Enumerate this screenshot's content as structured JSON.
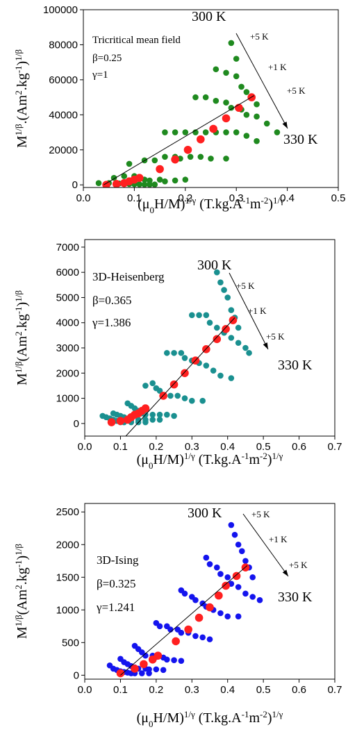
{
  "chart_data": [
    {
      "type": "scatter",
      "x_label": [
        "(μ",
        "0",
        "H/M)",
        "1/γ",
        " (T.kg.A",
        "-1",
        "m",
        "-2",
        ")",
        "1/γ"
      ],
      "y_label": [
        "M",
        "1/β",
        ".(Am",
        "2",
        ".kg",
        "-1",
        ")",
        "1/β"
      ],
      "annotations": [
        "Tricritical mean field",
        "β=0.25",
        "γ=1",
        "300 K",
        "+5 K",
        "+1 K",
        "+5 K",
        "330 K"
      ],
      "xlim": [
        0,
        0.5
      ],
      "xticks": [
        {
          "value": 0,
          "label": "0.0"
        },
        0.1,
        0.2,
        0.3,
        0.4,
        0.5
      ],
      "ylim": [
        -1500,
        100000
      ],
      "yticks": [
        0,
        20000,
        40000,
        60000,
        80000,
        100000
      ],
      "series": [
        {
          "color": "#1f8a1f",
          "x": [
            0.03,
            0.06,
            0.09,
            0.16,
            0.22,
            0.26,
            0.29,
            0.05,
            0.08,
            0.12,
            0.18,
            0.24,
            0.28,
            0.3,
            0.07,
            0.1,
            0.14,
            0.2,
            0.26,
            0.3,
            0.08,
            0.11,
            0.16,
            0.22,
            0.28,
            0.31,
            0.09,
            0.12,
            0.18,
            0.24,
            0.29,
            0.32,
            0.1,
            0.13,
            0.19,
            0.26,
            0.31,
            0.33,
            0.11,
            0.15,
            0.21,
            0.28,
            0.32,
            0.34,
            0.12,
            0.16,
            0.23,
            0.3,
            0.34,
            0.13,
            0.18,
            0.25,
            0.32,
            0.36,
            0.14,
            0.2,
            0.28,
            0.34,
            0.38
          ],
          "values": [
            1000,
            4000,
            12000,
            30000,
            50000,
            66000,
            81000,
            1000,
            5000,
            14000,
            30000,
            50000,
            64000,
            72000,
            800,
            5000,
            14000,
            30000,
            48000,
            62000,
            600,
            4000,
            16000,
            30000,
            47000,
            56000,
            500,
            3000,
            16000,
            30000,
            44000,
            53000,
            400,
            2500,
            15000,
            30000,
            43000,
            50000,
            300,
            3000,
            16000,
            30000,
            40000,
            46000,
            200,
            2000,
            16000,
            30000,
            39000,
            200,
            2500,
            15000,
            28000,
            35000,
            200,
            3000,
            15000,
            25000,
            30000
          ]
        },
        {
          "color": "#ff2020",
          "x": [
            0.045,
            0.065,
            0.08,
            0.09,
            0.1,
            0.11,
            0.15,
            0.18,
            0.205,
            0.23,
            0.255,
            0.28,
            0.305,
            0.33
          ],
          "values": [
            0,
            500,
            1000,
            2000,
            3000,
            4000,
            9000,
            14500,
            20000,
            26000,
            32000,
            38000,
            44000,
            50000
          ]
        },
        {
          "color": "#000000",
          "style": "line",
          "x": [
            0.04,
            0.335
          ],
          "values": [
            0,
            51000
          ]
        }
      ]
    },
    {
      "type": "scatter",
      "x_label": [
        "(μ",
        "0",
        "H/M)",
        "1/γ",
        " (T.kg.A",
        "-1",
        "m",
        "-2",
        ")",
        "1/γ"
      ],
      "y_label": [
        "M",
        "1/β",
        "(Am",
        "2",
        ".kg",
        "-1",
        ")",
        "1/β"
      ],
      "annotations": [
        "3D-Heisenberg",
        "β=0.365",
        "γ=1.386",
        "300 K",
        "+5 K",
        "+1 K",
        "+5 K",
        "330 K"
      ],
      "xlim": [
        0,
        0.7
      ],
      "xticks": [
        {
          "value": 0,
          "label": "0.0"
        },
        0.1,
        0.2,
        0.3,
        0.4,
        0.5,
        0.6,
        0.7
      ],
      "ylim": [
        -500,
        7300
      ],
      "yticks": [
        0,
        1000,
        2000,
        3000,
        4000,
        5000,
        6000,
        7000
      ],
      "series": [
        {
          "color": "#1a9090",
          "x": [
            0.05,
            0.08,
            0.12,
            0.17,
            0.23,
            0.3,
            0.37,
            0.06,
            0.09,
            0.13,
            0.19,
            0.25,
            0.32,
            0.38,
            0.07,
            0.1,
            0.14,
            0.2,
            0.27,
            0.34,
            0.39,
            0.08,
            0.11,
            0.15,
            0.21,
            0.28,
            0.35,
            0.4,
            0.09,
            0.12,
            0.16,
            0.22,
            0.3,
            0.37,
            0.41,
            0.1,
            0.13,
            0.17,
            0.24,
            0.32,
            0.39,
            0.42,
            0.11,
            0.15,
            0.19,
            0.26,
            0.34,
            0.41,
            0.43,
            0.13,
            0.17,
            0.21,
            0.28,
            0.36,
            0.43,
            0.15,
            0.19,
            0.23,
            0.3,
            0.38,
            0.45,
            0.17,
            0.21,
            0.25,
            0.33,
            0.41,
            0.46
          ],
          "values": [
            300,
            400,
            800,
            1500,
            2800,
            4300,
            6000,
            250,
            350,
            700,
            1600,
            2800,
            4300,
            5600,
            200,
            300,
            600,
            1400,
            2800,
            4300,
            5300,
            150,
            250,
            500,
            1300,
            2600,
            4000,
            5000,
            100,
            200,
            400,
            1100,
            2500,
            3800,
            4500,
            50,
            150,
            350,
            1100,
            2400,
            3600,
            4200,
            50,
            150,
            350,
            1100,
            2300,
            3400,
            3800,
            50,
            150,
            350,
            1000,
            2100,
            3200,
            50,
            150,
            350,
            900,
            1900,
            3000,
            50,
            150,
            300,
            900,
            1800,
            2800
          ]
        },
        {
          "color": "#ff2020",
          "x": [
            0.075,
            0.1,
            0.12,
            0.13,
            0.14,
            0.15,
            0.16,
            0.17,
            0.22,
            0.25,
            0.28,
            0.31,
            0.34,
            0.37,
            0.395,
            0.415
          ],
          "values": [
            50,
            100,
            150,
            250,
            350,
            400,
            500,
            600,
            1100,
            1550,
            2000,
            2500,
            2950,
            3350,
            3750,
            4100
          ]
        },
        {
          "color": "#000000",
          "style": "line",
          "x": [
            0.115,
            0.42
          ],
          "values": [
            -500,
            4200
          ]
        }
      ]
    },
    {
      "type": "scatter",
      "x_label": [
        "(μ",
        "0",
        "H/M)",
        "1/γ",
        " (T.kg.A",
        "-1",
        "m",
        "-2",
        ")",
        "1/γ"
      ],
      "y_label": [
        "M",
        "1/β",
        "(Am",
        "2",
        ".kg",
        "-1",
        ")",
        "1/β"
      ],
      "annotations": [
        "3D-Ising",
        "β=0.325",
        "γ=1.241",
        "300 K",
        "+5 K",
        "+1 K",
        "+5 K",
        "330 K"
      ],
      "xlim": [
        0,
        0.7
      ],
      "xticks": [
        {
          "value": 0,
          "label": "0.0"
        },
        0.1,
        0.2,
        0.3,
        0.4,
        0.5,
        0.6,
        0.7
      ],
      "ylim": [
        -60,
        2630
      ],
      "yticks": [
        0,
        500,
        1000,
        1500,
        2000,
        2500
      ],
      "series": [
        {
          "color": "#1414ee",
          "x": [
            0.07,
            0.1,
            0.14,
            0.2,
            0.27,
            0.34,
            0.41,
            0.08,
            0.11,
            0.15,
            0.21,
            0.28,
            0.35,
            0.42,
            0.09,
            0.12,
            0.16,
            0.23,
            0.3,
            0.37,
            0.43,
            0.1,
            0.13,
            0.17,
            0.24,
            0.31,
            0.38,
            0.44,
            0.11,
            0.14,
            0.19,
            0.26,
            0.33,
            0.4,
            0.45,
            0.12,
            0.15,
            0.2,
            0.27,
            0.34,
            0.41,
            0.46,
            0.13,
            0.17,
            0.22,
            0.29,
            0.36,
            0.43,
            0.47,
            0.14,
            0.18,
            0.23,
            0.31,
            0.38,
            0.45,
            0.16,
            0.2,
            0.25,
            0.33,
            0.4,
            0.47,
            0.18,
            0.22,
            0.27,
            0.35,
            0.43,
            0.49
          ],
          "values": [
            150,
            250,
            450,
            800,
            1300,
            1800,
            2300,
            100,
            200,
            400,
            750,
            1250,
            1700,
            2150,
            80,
            170,
            350,
            750,
            1200,
            1650,
            2000,
            60,
            140,
            300,
            700,
            1150,
            1550,
            1900,
            50,
            120,
            300,
            700,
            1100,
            1500,
            1750,
            40,
            100,
            280,
            650,
            1050,
            1400,
            1650,
            30,
            100,
            270,
            650,
            1000,
            1350,
            1500,
            30,
            90,
            240,
            600,
            950,
            1250,
            30,
            90,
            230,
            580,
            900,
            1200,
            30,
            80,
            220,
            550,
            900,
            1150
          ]
        },
        {
          "color": "#ff2020",
          "x": [
            0.1,
            0.14,
            0.165,
            0.19,
            0.205,
            0.255,
            0.29,
            0.32,
            0.35,
            0.375,
            0.395,
            0.425,
            0.45
          ],
          "values": [
            30,
            100,
            170,
            240,
            300,
            520,
            700,
            880,
            1040,
            1220,
            1370,
            1520,
            1650
          ]
        },
        {
          "color": "#000000",
          "style": "line",
          "x": [
            0.1,
            0.455
          ],
          "values": [
            0,
            1680
          ]
        }
      ]
    }
  ]
}
